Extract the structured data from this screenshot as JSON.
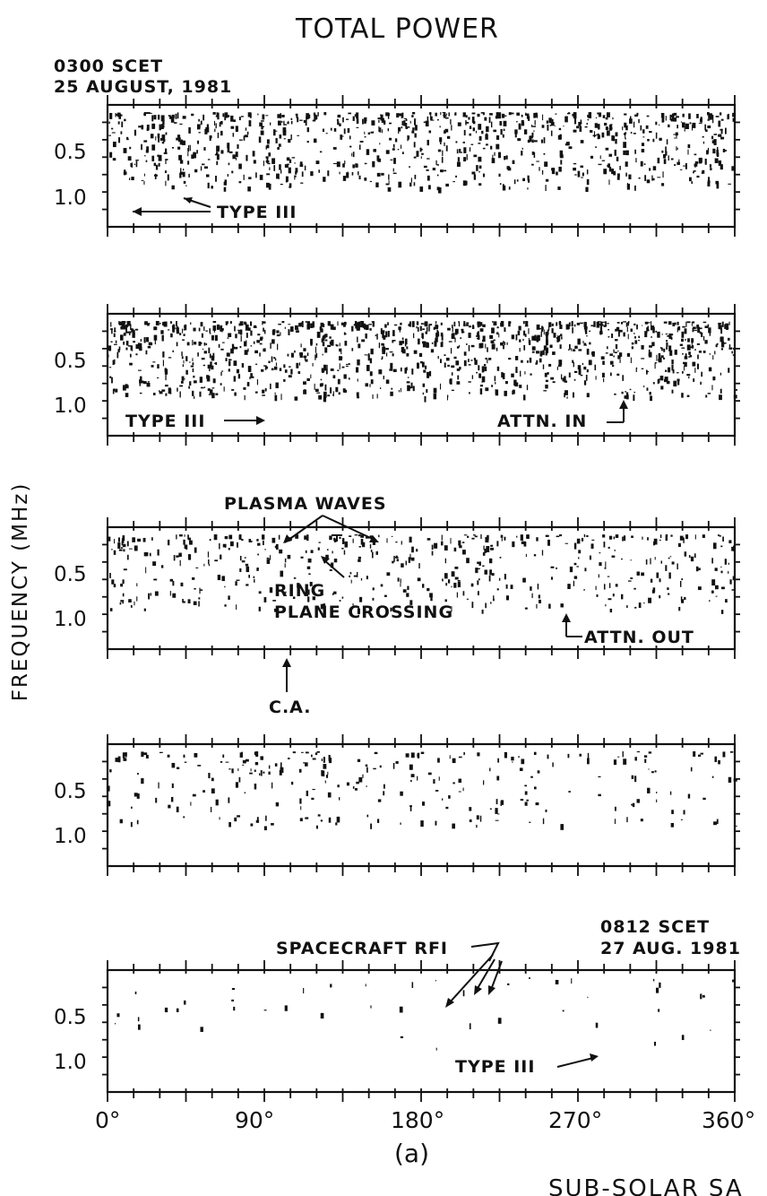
{
  "chart_data": {
    "type": "scatter",
    "title": "TOTAL POWER",
    "caption": "(a)",
    "ylabel": "FREQUENCY (MHz)",
    "xlabel": "SUB-SOLAR SA",
    "start_label": {
      "line1": "0300 SCET",
      "line2": "25 AUGUST, 1981"
    },
    "end_label": {
      "line1": "0812 SCET",
      "line2": "27 AUG. 1981"
    },
    "xlim": [
      0,
      360
    ],
    "x_ticks": [
      "0°",
      "90°",
      "180°",
      "270°",
      "360°"
    ],
    "y_tick_labels": [
      "0.5",
      "1.0"
    ],
    "panels": [
      {
        "density": 1.0,
        "annotations": {
          "type3": "TYPE III"
        }
      },
      {
        "density": 1.25,
        "annotations": {
          "type3": "TYPE III",
          "attn_in": "ATTN. IN"
        }
      },
      {
        "density": 0.55,
        "annotations": {
          "plasma_waves": "PLASMA WAVES",
          "ring_line1": "RING",
          "ring_line2": "PLANE CROSSING",
          "attn_out": "ATTN. OUT",
          "ca": "C.A."
        }
      },
      {
        "density": 0.3,
        "annotations": {}
      },
      {
        "density": 0.05,
        "annotations": {
          "rfi": "SPACECRAFT RFI",
          "type3": "TYPE III"
        }
      }
    ]
  }
}
